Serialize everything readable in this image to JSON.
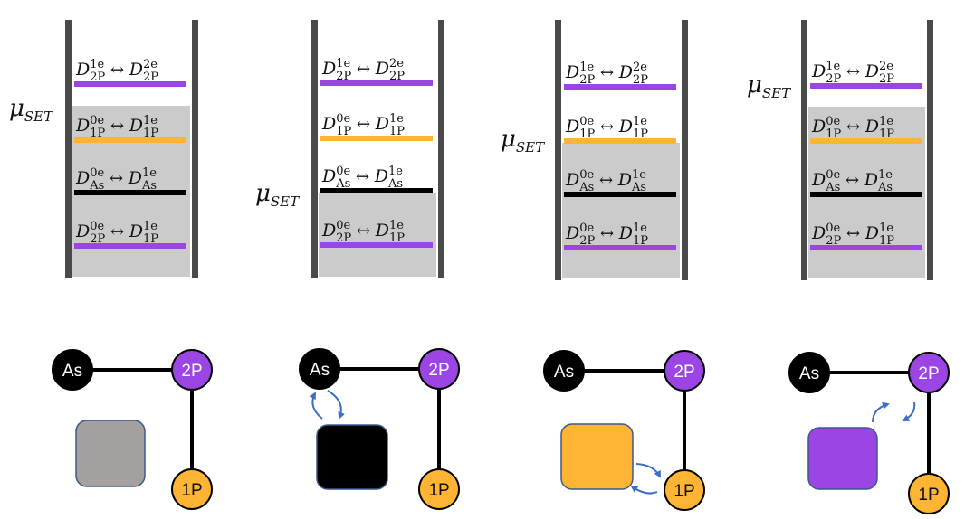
{
  "colors": {
    "wall": "#4a4a4a",
    "fill": "#cbcbcb",
    "purple": "#9b45e4",
    "orange": "#ffb433",
    "black": "#000000",
    "gray_square": "#a3a09f",
    "arrow": "#3a6fc4"
  },
  "level_labels": [
    {
      "left_sup": "1e",
      "left_sub": "2P",
      "right_sup": "2e",
      "right_sub": "2P"
    },
    {
      "left_sup": "0e",
      "left_sub": "1P",
      "right_sup": "1e",
      "right_sub": "1P"
    },
    {
      "left_sup": "0e",
      "left_sub": "As",
      "right_sup": "1e",
      "right_sub": "As"
    },
    {
      "left_sup": "0e",
      "left_sub": "2P",
      "right_sup": "1e",
      "right_sub": "1P"
    }
  ],
  "symbols": {
    "D": "D",
    "arrow": "↔",
    "mu": "μ",
    "mu_sub": "SET"
  },
  "nodes": {
    "as": "As",
    "p2": "2P",
    "p1": "1P"
  },
  "panels": [
    {
      "mu_level": 0,
      "square_color": "gray",
      "arrow_pair": "none"
    },
    {
      "mu_level": 2,
      "square_color": "black",
      "arrow_pair": "as"
    },
    {
      "mu_level": 1,
      "square_color": "orange",
      "arrow_pair": "p1"
    },
    {
      "mu_level": 0,
      "square_color": "purple",
      "arrow_pair": "p2"
    }
  ]
}
